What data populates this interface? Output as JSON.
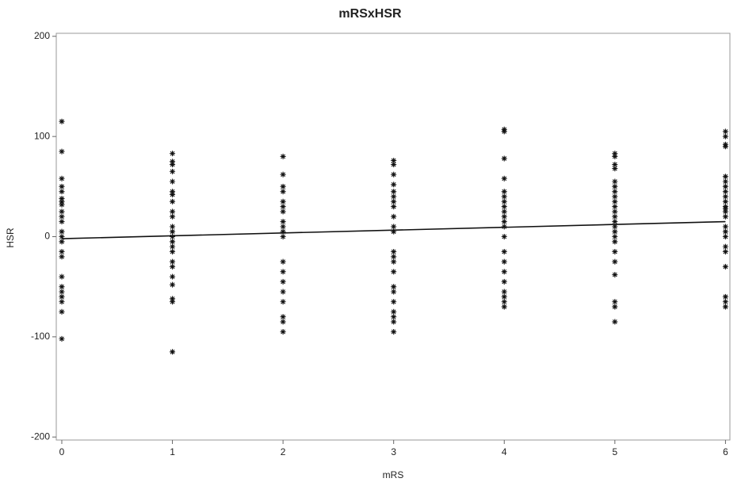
{
  "chart_data": {
    "type": "scatter",
    "title": "mRSxHSR",
    "x_label": "mRS",
    "y_label": "HSR",
    "xlim": [
      -0.05,
      6.04
    ],
    "ylim": [
      -203,
      203
    ],
    "xticks": [
      0,
      1,
      2,
      3,
      4,
      5,
      6
    ],
    "yticks": [
      -200,
      -100,
      0,
      100,
      200
    ],
    "color": "#111111",
    "x": [
      0,
      0,
      0,
      0,
      0,
      0,
      0,
      0,
      0,
      0,
      0,
      0,
      0,
      0,
      0,
      0,
      0,
      0,
      0,
      0,
      0,
      0,
      0,
      1,
      1,
      1,
      1,
      1,
      1,
      1,
      1,
      1,
      1,
      1,
      1,
      1,
      1,
      1,
      1,
      1,
      1,
      1,
      1,
      1,
      1,
      1,
      2,
      2,
      2,
      2,
      2,
      2,
      2,
      2,
      2,
      2,
      2,
      2,
      2,
      2,
      2,
      2,
      2,
      2,
      2,
      3,
      3,
      3,
      3,
      3,
      3,
      3,
      3,
      3,
      3,
      3,
      3,
      3,
      3,
      3,
      3,
      3,
      3,
      3,
      3,
      3,
      3,
      4,
      4,
      4,
      4,
      4,
      4,
      4,
      4,
      4,
      4,
      4,
      4,
      4,
      4,
      4,
      4,
      4,
      4,
      4,
      4,
      4,
      5,
      5,
      5,
      5,
      5,
      5,
      5,
      5,
      5,
      5,
      5,
      5,
      5,
      5,
      5,
      5,
      5,
      5,
      5,
      5,
      5,
      5,
      5,
      6,
      6,
      6,
      6,
      6,
      6,
      6,
      6,
      6,
      6,
      6,
      6,
      6,
      6,
      6,
      6,
      6,
      6,
      6,
      6,
      6,
      6,
      6
    ],
    "y": [
      115,
      85,
      58,
      50,
      45,
      38,
      35,
      32,
      25,
      20,
      15,
      5,
      0,
      -5,
      -15,
      -20,
      -40,
      -50,
      -55,
      -60,
      -65,
      -75,
      -102,
      83,
      75,
      72,
      65,
      55,
      45,
      42,
      35,
      25,
      20,
      10,
      5,
      0,
      -5,
      -10,
      -15,
      -25,
      -30,
      -40,
      -48,
      -62,
      -65,
      -115,
      80,
      62,
      50,
      45,
      35,
      30,
      25,
      15,
      10,
      5,
      0,
      -25,
      -35,
      -45,
      -55,
      -65,
      -80,
      -85,
      -95,
      76,
      72,
      62,
      52,
      45,
      40,
      35,
      30,
      20,
      10,
      5,
      -15,
      -20,
      -25,
      -35,
      -50,
      -55,
      -65,
      -75,
      -80,
      -85,
      -95,
      107,
      105,
      78,
      58,
      45,
      40,
      35,
      30,
      25,
      20,
      15,
      10,
      0,
      -15,
      -25,
      -35,
      -45,
      -55,
      -60,
      -65,
      -70,
      83,
      80,
      72,
      68,
      55,
      50,
      45,
      40,
      35,
      30,
      25,
      20,
      15,
      10,
      5,
      0,
      -5,
      -15,
      -25,
      -38,
      -65,
      -70,
      -85,
      105,
      100,
      92,
      90,
      60,
      55,
      50,
      45,
      40,
      35,
      30,
      28,
      25,
      20,
      10,
      5,
      0,
      -10,
      -15,
      -30,
      -60,
      -65,
      -70
    ],
    "fit_line": {
      "x": [
        0,
        6
      ],
      "y": [
        -2,
        15
      ]
    }
  }
}
